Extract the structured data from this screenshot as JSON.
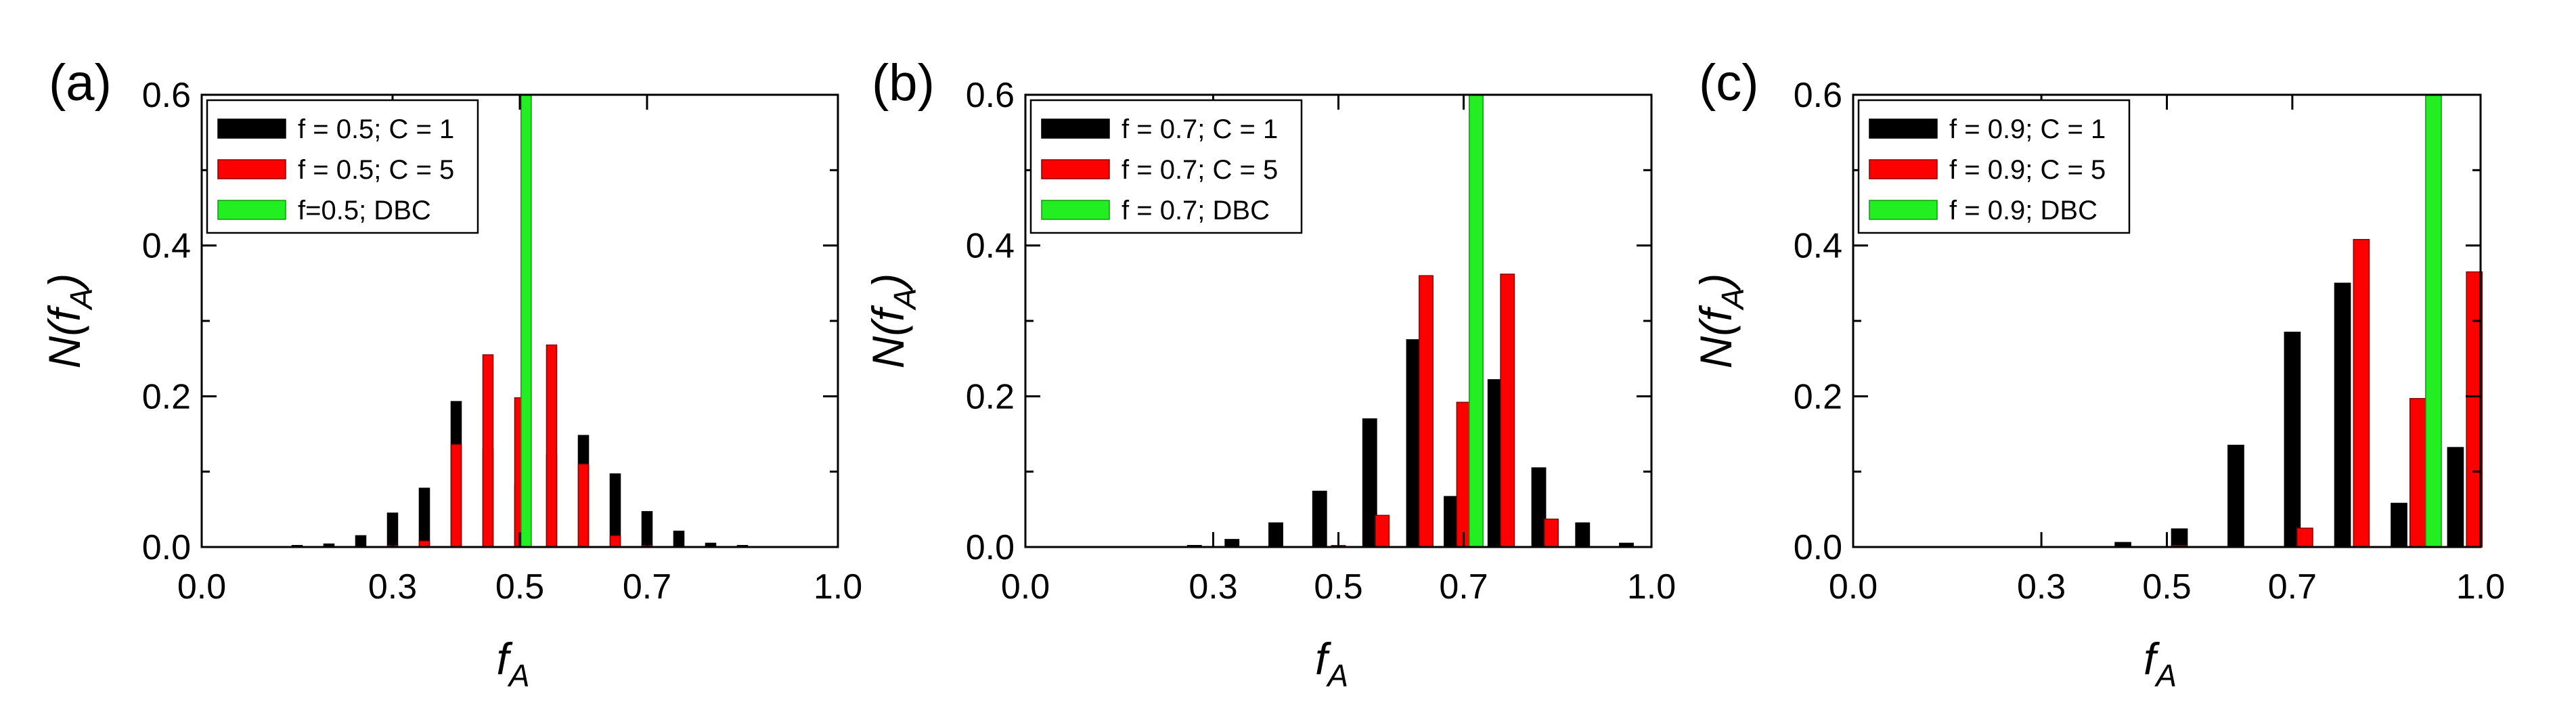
{
  "figure": {
    "colors": {
      "black": "#000000",
      "red": "#ff0000",
      "green": "#22ee22",
      "axis": "#000000"
    }
  },
  "chart_data": [
    {
      "type": "bar",
      "panel_label": "(a)",
      "xlabel": "f",
      "xlabel_sub": "A",
      "ylabel_prefix": "N(f",
      "ylabel_sub": "A",
      "ylabel_suffix": ")",
      "xlim": [
        0.0,
        1.0
      ],
      "ylim": [
        0.0,
        0.6
      ],
      "xticks": [
        "0.0",
        "0.3",
        "0.5",
        "0.7",
        "1.0"
      ],
      "xtick_values": [
        0.0,
        0.3,
        0.5,
        0.7,
        1.0
      ],
      "yticks": [
        "0.0",
        "0.2",
        "0.4",
        "0.6"
      ],
      "ytick_values": [
        0.0,
        0.2,
        0.4,
        0.6
      ],
      "legend_position": "top-left",
      "series": [
        {
          "name": "f = 0.5; C = 1",
          "color": "#000000",
          "bar_width": 0.016,
          "x": [
            0.15,
            0.2,
            0.25,
            0.3,
            0.35,
            0.4,
            0.45,
            0.5,
            0.55,
            0.6,
            0.65,
            0.7,
            0.75,
            0.8,
            0.85
          ],
          "y": [
            0.002,
            0.004,
            0.015,
            0.045,
            0.078,
            0.193,
            0.13,
            0.082,
            0.122,
            0.148,
            0.097,
            0.047,
            0.021,
            0.005,
            0.002
          ]
        },
        {
          "name": "f = 0.5; C = 5",
          "color": "#ff0000",
          "bar_width": 0.016,
          "x": [
            0.3,
            0.35,
            0.4,
            0.45,
            0.5,
            0.55,
            0.6,
            0.65,
            0.7
          ],
          "y": [
            0.002,
            0.008,
            0.136,
            0.255,
            0.198,
            0.268,
            0.11,
            0.015,
            0.002
          ]
        },
        {
          "name": "f=0.5; DBC",
          "color": "#22ee22",
          "bar_width": 0.016,
          "x": [
            0.51
          ],
          "y": [
            0.6
          ]
        }
      ]
    },
    {
      "type": "bar",
      "panel_label": "(b)",
      "xlabel": "f",
      "xlabel_sub": "A",
      "ylabel_prefix": "N(f",
      "ylabel_sub": "A",
      "ylabel_suffix": ")",
      "xlim": [
        0.0,
        1.0
      ],
      "ylim": [
        0.0,
        0.6
      ],
      "xticks": [
        "0.0",
        "0.3",
        "0.5",
        "0.7",
        "1.0"
      ],
      "xtick_values": [
        0.0,
        0.3,
        0.5,
        0.7,
        1.0
      ],
      "yticks": [
        "0.0",
        "0.2",
        "0.4",
        "0.6"
      ],
      "ytick_values": [
        0.0,
        0.2,
        0.4,
        0.6
      ],
      "legend_position": "top-left",
      "series": [
        {
          "name": "f = 0.7; C = 1",
          "color": "#000000",
          "bar_width": 0.022,
          "x": [
            0.27,
            0.33,
            0.4,
            0.47,
            0.55,
            0.62,
            0.68,
            0.75,
            0.82,
            0.89,
            0.96
          ],
          "y": [
            0.002,
            0.01,
            0.032,
            0.074,
            0.17,
            0.275,
            0.067,
            0.222,
            0.105,
            0.032,
            0.005
          ]
        },
        {
          "name": "f = 0.7; C = 5",
          "color": "#ff0000",
          "bar_width": 0.022,
          "x": [
            0.5,
            0.57,
            0.64,
            0.7,
            0.77,
            0.84
          ],
          "y": [
            0.002,
            0.042,
            0.36,
            0.192,
            0.362,
            0.037
          ]
        },
        {
          "name": "f = 0.7; DBC",
          "color": "#22ee22",
          "bar_width": 0.022,
          "x": [
            0.72
          ],
          "y": [
            0.6
          ]
        }
      ]
    },
    {
      "type": "bar",
      "panel_label": "(c)",
      "xlabel": "f",
      "xlabel_sub": "A",
      "ylabel_prefix": "N(f",
      "ylabel_sub": "A",
      "ylabel_suffix": ")",
      "xlim": [
        0.0,
        1.0
      ],
      "ylim": [
        0.0,
        0.6
      ],
      "xticks": [
        "0.0",
        "0.3",
        "0.5",
        "0.7",
        "1.0"
      ],
      "xtick_values": [
        0.0,
        0.3,
        0.5,
        0.7,
        1.0
      ],
      "yticks": [
        "0.0",
        "0.2",
        "0.4",
        "0.6"
      ],
      "ytick_values": [
        0.0,
        0.2,
        0.4,
        0.6
      ],
      "legend_position": "top-left",
      "series": [
        {
          "name": "f = 0.9; C = 1",
          "color": "#000000",
          "bar_width": 0.025,
          "x": [
            0.43,
            0.52,
            0.61,
            0.7,
            0.78,
            0.87,
            0.96
          ],
          "y": [
            0.006,
            0.024,
            0.135,
            0.285,
            0.35,
            0.058,
            0.132
          ]
        },
        {
          "name": "f = 0.9; C = 5",
          "color": "#ff0000",
          "bar_width": 0.025,
          "x": [
            0.52,
            0.72,
            0.81,
            0.9,
            0.99
          ],
          "y": [
            0.002,
            0.025,
            0.408,
            0.197,
            0.365
          ]
        },
        {
          "name": "f = 0.9; DBC",
          "color": "#22ee22",
          "bar_width": 0.025,
          "x": [
            0.925
          ],
          "y": [
            0.6
          ]
        }
      ]
    }
  ]
}
